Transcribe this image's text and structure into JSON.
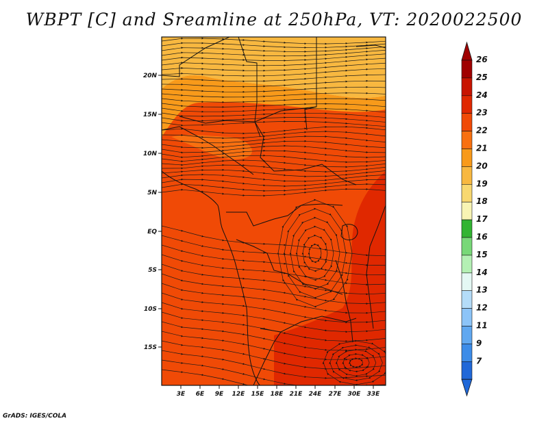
{
  "title": "WBPT [C] and Sreamline at 250hPa, VT: 2020022500",
  "credit": "GrADS: IGES/COLA",
  "lat_labels": [
    "20N",
    "15N",
    "10N",
    "5N",
    "EQ",
    "5S",
    "10S",
    "15S"
  ],
  "lon_labels": [
    "3E",
    "6E",
    "9E",
    "12E",
    "15E",
    "18E",
    "21E",
    "24E",
    "27E",
    "30E",
    "33E"
  ],
  "colorbar": {
    "labels": [
      "26",
      "25",
      "24",
      "23",
      "22",
      "21",
      "20",
      "19",
      "18",
      "17",
      "16",
      "15",
      "14",
      "13",
      "12",
      "11",
      "9",
      "7"
    ],
    "colors": [
      "#a00000",
      "#c81400",
      "#e02800",
      "#f04a06",
      "#f87010",
      "#f89a1a",
      "#f8b840",
      "#f8d870",
      "#f8f4b4",
      "#32b432",
      "#78d878",
      "#b4f0b4",
      "#e4f8f4",
      "#b4dcf8",
      "#8cc4f8",
      "#60a8f0",
      "#3c8ce8",
      "#2068d8"
    ],
    "top_arrow_color": "#a00000",
    "bottom_arrow_color": "#2068d8"
  },
  "field_colors": {
    "north_band": "#f8b840",
    "mid_band": "#f89a1a",
    "main": "#f04a06",
    "hot": "#e02800",
    "warm_patch": "#f87010"
  }
}
